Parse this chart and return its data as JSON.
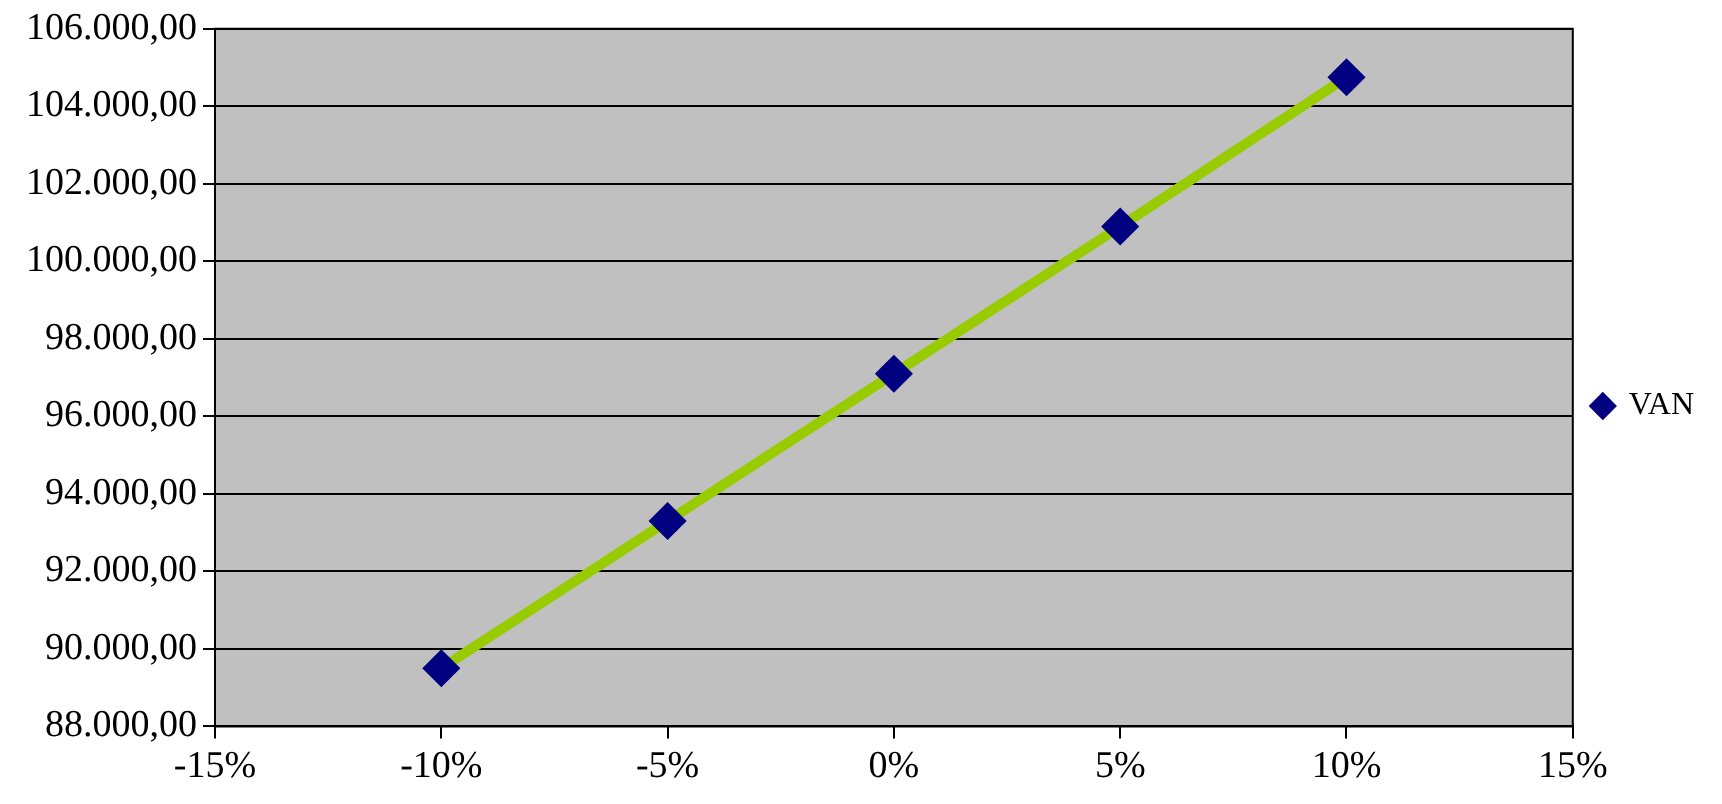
{
  "chart_data": {
    "type": "line",
    "x": [
      -10,
      -5,
      0,
      5,
      10
    ],
    "series": [
      {
        "name": "VAN",
        "color": "#99cc00",
        "colors": [
          "#000080",
          "#000080",
          "#000080",
          "#000080",
          "#000080"
        ],
        "values": [
          89500,
          93300,
          97100,
          100900,
          104750
        ]
      }
    ],
    "xlim": [
      -15,
      15
    ],
    "xticks": [
      {
        "value": -15,
        "label": "-15%"
      },
      {
        "value": -10,
        "label": "-10%"
      },
      {
        "value": -5,
        "label": "-5%"
      },
      {
        "value": 0,
        "label": "0%"
      },
      {
        "value": 5,
        "label": "5%"
      },
      {
        "value": 10,
        "label": "10%"
      },
      {
        "value": 15,
        "label": "15%"
      }
    ],
    "ylim": [
      88000,
      106000
    ],
    "yticks": [
      {
        "value": 88000,
        "label": "88.000,00"
      },
      {
        "value": 90000,
        "label": "90.000,00"
      },
      {
        "value": 92000,
        "label": "92.000,00"
      },
      {
        "value": 94000,
        "label": "94.000,00"
      },
      {
        "value": 96000,
        "label": "96.000,00"
      },
      {
        "value": 98000,
        "label": "98.000,00"
      },
      {
        "value": 100000,
        "label": "100.000,00"
      },
      {
        "value": 102000,
        "label": "102.000,00"
      },
      {
        "value": 104000,
        "label": "104.000,00"
      },
      {
        "value": 106000,
        "label": "106.000,00"
      }
    ],
    "grid": "y",
    "legend": "right",
    "marker": "diamond",
    "line_style": "solid"
  }
}
